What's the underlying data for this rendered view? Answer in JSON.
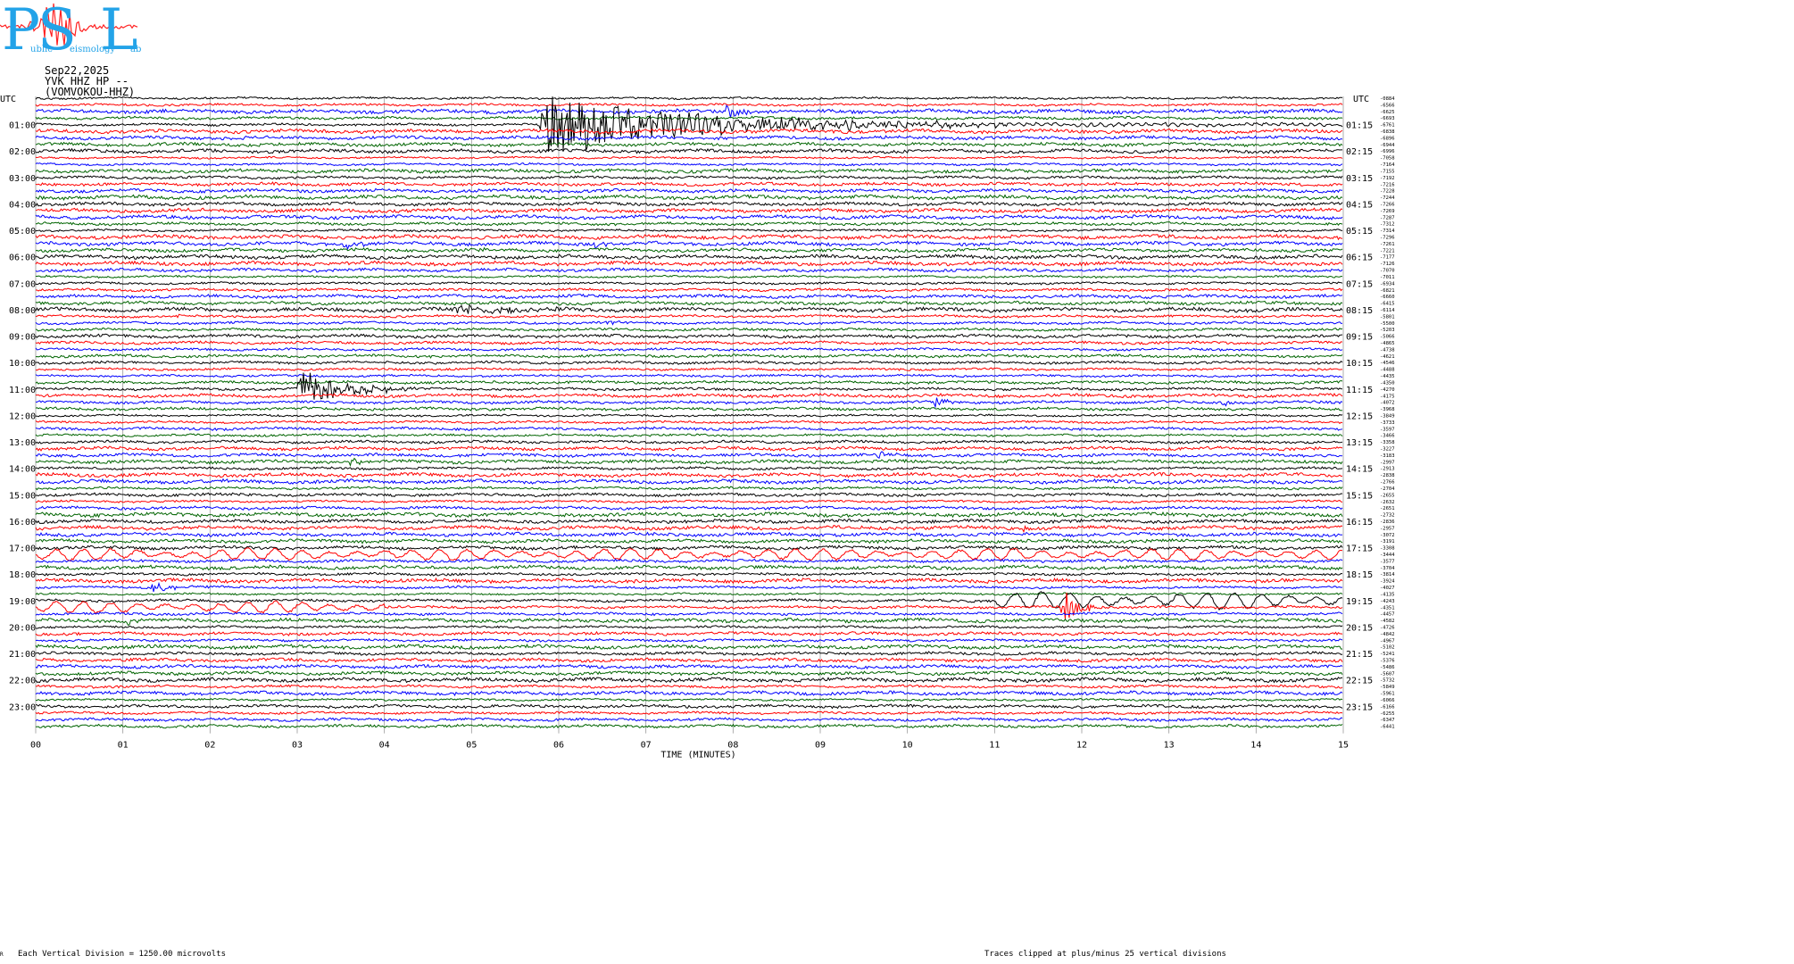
{
  "logo": {
    "letters": [
      "P",
      "S",
      "L"
    ],
    "text_fragments": [
      "ublic",
      "eismology",
      "ab"
    ],
    "colors": {
      "letters": "#23a3e8",
      "trace": "#ff2020"
    }
  },
  "header": {
    "date": "Sep22,2025",
    "station": "YVK HHZ HP --",
    "name": "(VOMVOKOU-HHZ)"
  },
  "footer": {
    "division_note": "Each Vertical Division = 1250.00 microvolts",
    "xlabel": "TIME (MINUTES)",
    "clip_note": "Traces clipped at plus/minus 25 vertical divisions",
    "corner_mark": "R"
  },
  "chart_data": {
    "type": "line",
    "title": "",
    "xlabel": "TIME (MINUTES)",
    "ylabel": "",
    "xlim": [
      0,
      15
    ],
    "x_ticks": [
      "00",
      "01",
      "02",
      "03",
      "04",
      "05",
      "06",
      "07",
      "08",
      "09",
      "10",
      "11",
      "12",
      "13",
      "14",
      "15"
    ],
    "left_axis_title": "UTC",
    "right_axis_title": "UTC",
    "left_hour_labels": [
      "01:00",
      "02:00",
      "03:00",
      "04:00",
      "05:00",
      "06:00",
      "07:00",
      "08:00",
      "09:00",
      "10:00",
      "11:00",
      "12:00",
      "13:00",
      "14:00",
      "15:00",
      "16:00",
      "17:00",
      "18:00",
      "19:00",
      "20:00",
      "21:00",
      "22:00",
      "23:00"
    ],
    "right_hour_labels": [
      "01:15",
      "02:15",
      "03:15",
      "04:15",
      "05:15",
      "06:15",
      "07:15",
      "08:15",
      "09:15",
      "10:15",
      "11:15",
      "12:15",
      "13:15",
      "14:15",
      "15:15",
      "16:15",
      "17:15",
      "18:15",
      "19:15",
      "20:15",
      "21:15",
      "22:15",
      "23:15"
    ],
    "trace_colors": [
      "#000000",
      "#ff0000",
      "#0000ff",
      "#006400"
    ],
    "traces_per_hour": 4,
    "trace_count": 96,
    "offset_labels": [
      "-0884",
      "-6566",
      "-6625",
      "-6693",
      "-6761",
      "-6838",
      "-6896",
      "-6944",
      "-6996",
      "-7058",
      "-7164",
      "-7155",
      "-7192",
      "-7216",
      "-7228",
      "-7244",
      "-7266",
      "-7269",
      "-7287",
      "-7312",
      "-7314",
      "-7296",
      "-7261",
      "-7221",
      "-7177",
      "-7126",
      "-7070",
      "-7011",
      "-6934",
      "-6821",
      "-6660",
      "-6415",
      "-6114",
      "-5801",
      "-5500",
      "-5203",
      "-5066",
      "-4865",
      "-4738",
      "-4621",
      "-4546",
      "-4488",
      "-4435",
      "-4350",
      "-4270",
      "-4175",
      "-4072",
      "-3968",
      "-3849",
      "-3733",
      "-3597",
      "-3466",
      "-3358",
      "-3227",
      "-3183",
      "-2997",
      "-2913",
      "-2838",
      "-2766",
      "-2704",
      "-2655",
      "-2632",
      "-2651",
      "-2732",
      "-2836",
      "-2957",
      "-3072",
      "-3191",
      "-3308",
      "-3444",
      "-3577",
      "-3704",
      "-3814",
      "-3924",
      "-4027",
      "-4135",
      "-4243",
      "-4351",
      "-4457",
      "-4582",
      "-4726",
      "-4842",
      "-4967",
      "-5102",
      "-5241",
      "-5376",
      "-5486",
      "-5607",
      "-5732",
      "-5849",
      "-5961",
      "-6066",
      "-6166",
      "-6255",
      "-6347",
      "-6441"
    ],
    "events": [
      {
        "trace": 4,
        "start": 5.75,
        "end": 15.0,
        "amp": 38,
        "dur": 8.0,
        "kind": "major"
      },
      {
        "trace": 2,
        "start": 7.9,
        "end": 8.4,
        "amp": 10,
        "dur": 0.35,
        "kind": "burst"
      },
      {
        "trace": 1,
        "start": 1.5,
        "end": 1.6,
        "amp": 4,
        "dur": 0.1,
        "kind": "burst"
      },
      {
        "trace": 6,
        "start": 2.35,
        "end": 2.45,
        "amp": 3,
        "dur": 0.1,
        "kind": "burst"
      },
      {
        "trace": 22,
        "start": 3.5,
        "end": 3.8,
        "amp": 11,
        "dur": 0.25,
        "kind": "burst"
      },
      {
        "trace": 22,
        "start": 6.4,
        "end": 6.7,
        "amp": 7,
        "dur": 0.25,
        "kind": "burst"
      },
      {
        "trace": 23,
        "start": 5.05,
        "end": 5.2,
        "amp": 4,
        "dur": 0.12,
        "kind": "burst"
      },
      {
        "trace": 32,
        "start": 4.8,
        "end": 7.6,
        "amp": 5,
        "dur": 2.0,
        "kind": "burst"
      },
      {
        "trace": 33,
        "start": 1.6,
        "end": 1.9,
        "amp": 3,
        "dur": 0.2,
        "kind": "burst"
      },
      {
        "trace": 34,
        "start": 6.5,
        "end": 6.9,
        "amp": 5,
        "dur": 0.3,
        "kind": "burst"
      },
      {
        "trace": 39,
        "start": 1.6,
        "end": 1.7,
        "amp": 4,
        "dur": 0.1,
        "kind": "burst"
      },
      {
        "trace": 44,
        "start": 3.0,
        "end": 4.4,
        "amp": 22,
        "dur": 1.2,
        "kind": "burst"
      },
      {
        "trace": 46,
        "start": 10.3,
        "end": 10.6,
        "amp": 9,
        "dur": 0.25,
        "kind": "burst"
      },
      {
        "trace": 46,
        "start": 13.6,
        "end": 13.8,
        "amp": 9,
        "dur": 0.18,
        "kind": "burst"
      },
      {
        "trace": 49,
        "start": 10.88,
        "end": 10.94,
        "amp": 4,
        "dur": 0.05,
        "kind": "burst"
      },
      {
        "trace": 54,
        "start": 9.65,
        "end": 9.95,
        "amp": 8,
        "dur": 0.25,
        "kind": "burst"
      },
      {
        "trace": 55,
        "start": 3.6,
        "end": 3.85,
        "amp": 8,
        "dur": 0.2,
        "kind": "burst"
      },
      {
        "trace": 65,
        "start": 11.3,
        "end": 11.6,
        "amp": 4,
        "dur": 0.25,
        "kind": "burst"
      },
      {
        "trace": 69,
        "start": 0.0,
        "end": 15.0,
        "amp": 6,
        "dur": 30.0,
        "kind": "swell"
      },
      {
        "trace": 70,
        "start": 1.45,
        "end": 1.55,
        "amp": 5,
        "dur": 0.08,
        "kind": "burst"
      },
      {
        "trace": 74,
        "start": 1.3,
        "end": 2.2,
        "amp": 7,
        "dur": 0.6,
        "kind": "burst"
      },
      {
        "trace": 76,
        "start": 11.0,
        "end": 15.0,
        "amp": 9,
        "dur": 30.0,
        "kind": "swell"
      },
      {
        "trace": 77,
        "start": 0.0,
        "end": 4.0,
        "amp": 6,
        "dur": 30.0,
        "kind": "swell"
      },
      {
        "trace": 77,
        "start": 11.75,
        "end": 12.6,
        "amp": 26,
        "dur": 0.4,
        "kind": "burst"
      },
      {
        "trace": 79,
        "start": 1.0,
        "end": 1.35,
        "amp": 9,
        "dur": 0.25,
        "kind": "burst"
      },
      {
        "trace": 79,
        "start": 12.9,
        "end": 13.1,
        "amp": 4,
        "dur": 0.15,
        "kind": "burst"
      }
    ]
  }
}
